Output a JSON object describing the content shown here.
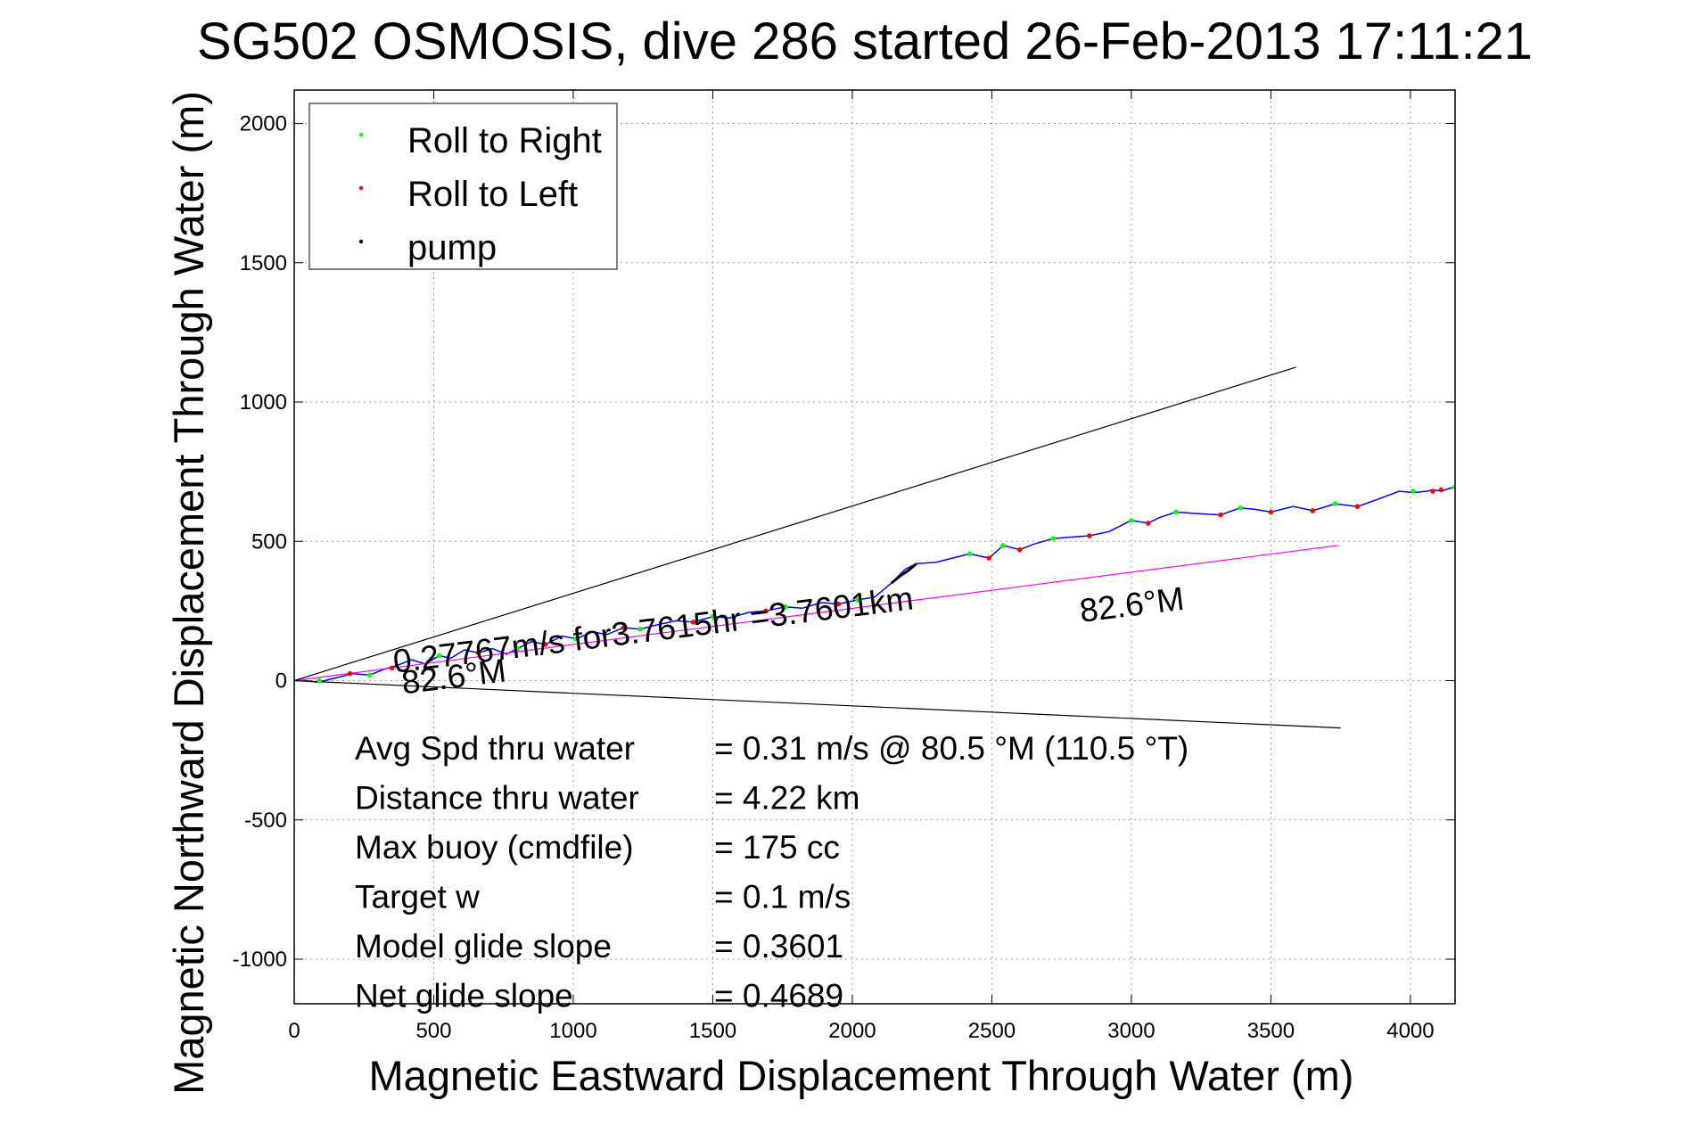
{
  "chart_data": {
    "type": "line",
    "title": "SG502 OSMOSIS, dive 286 started 26-Feb-2013 17:11:21",
    "xlabel": "Magnetic Eastward Displacement Through Water (m)",
    "ylabel": "Magnetic Northward Displacement Through Water (m)",
    "xlim": [
      0,
      4160
    ],
    "ylim": [
      -1160,
      2120
    ],
    "xticks": [
      0,
      500,
      1000,
      1500,
      2000,
      2500,
      3000,
      3500,
      4000
    ],
    "yticks": [
      -1000,
      -500,
      0,
      500,
      1000,
      1500,
      2000
    ],
    "grid": true,
    "legend_position": "top-left",
    "legend": [
      {
        "label": "Roll to Right",
        "color": "#00ff00"
      },
      {
        "label": "Roll to Left",
        "color": "#ff0000"
      },
      {
        "label": "pump",
        "color": "#000000"
      }
    ],
    "series": [
      {
        "role": "track",
        "color": "#0000ff",
        "x": [
          0,
          40,
          80,
          110,
          150,
          210,
          270,
          320,
          370,
          420,
          470,
          520,
          560,
          610,
          660,
          710,
          760,
          800,
          850,
          900,
          960,
          1010,
          1070,
          1120,
          1180,
          1240,
          1300,
          1370,
          1430,
          1500,
          1560,
          1630,
          1690,
          1760,
          1820,
          1890,
          1950,
          2020,
          2080,
          2140,
          2190,
          2230,
          2300,
          2360,
          2420,
          2490,
          2540,
          2600,
          2650,
          2720,
          2780,
          2850,
          2920,
          3000,
          3060,
          3100,
          3160,
          3230,
          3320,
          3390,
          3440,
          3500,
          3580,
          3650,
          3730,
          3810,
          3880,
          3960,
          4010,
          4060,
          4080,
          4110,
          4140,
          4160
        ],
        "y": [
          0,
          0,
          -5,
          0,
          10,
          25,
          20,
          40,
          55,
          75,
          60,
          90,
          80,
          110,
          100,
          115,
          95,
          115,
          140,
          130,
          160,
          150,
          175,
          165,
          190,
          185,
          200,
          215,
          210,
          230,
          225,
          245,
          250,
          265,
          260,
          280,
          275,
          290,
          300,
          350,
          400,
          420,
          425,
          440,
          455,
          440,
          485,
          470,
          490,
          510,
          515,
          520,
          535,
          575,
          565,
          585,
          605,
          600,
          595,
          620,
          615,
          605,
          625,
          610,
          635,
          625,
          650,
          680,
          675,
          680,
          685,
          680,
          690,
          695
        ]
      },
      {
        "role": "heading-line",
        "color": "#ff00ff",
        "x": [
          0,
          3740
        ],
        "y": [
          0,
          485
        ]
      },
      {
        "role": "bound-upper",
        "color": "#000000",
        "x": [
          0,
          3590
        ],
        "y": [
          0,
          1125
        ]
      },
      {
        "role": "bound-lower",
        "color": "#000000",
        "x": [
          0,
          3750
        ],
        "y": [
          0,
          -170
        ]
      },
      {
        "role": "pump",
        "color": "#000000",
        "x": [
          2140,
          2170,
          2200,
          2230
        ],
        "y": [
          350,
          375,
          395,
          420
        ]
      }
    ],
    "markers": {
      "roll_right": {
        "color": "#00ff00",
        "x": [
          90,
          270,
          520,
          800,
          1010,
          1240,
          1500,
          1760,
          2020,
          2420,
          2540,
          2720,
          3000,
          3160,
          3390,
          3730,
          4010,
          4160
        ],
        "y": [
          0,
          20,
          90,
          115,
          150,
          185,
          230,
          265,
          290,
          455,
          485,
          510,
          575,
          605,
          620,
          635,
          680,
          695
        ]
      },
      "roll_left": {
        "color": "#ff0000",
        "x": [
          200,
          350,
          660,
          900,
          1180,
          1430,
          1690,
          1950,
          2490,
          2600,
          2850,
          3060,
          3320,
          3500,
          3650,
          3810,
          4080,
          4110
        ],
        "y": [
          25,
          45,
          100,
          130,
          190,
          210,
          250,
          275,
          440,
          470,
          520,
          565,
          595,
          605,
          610,
          625,
          680,
          685
        ]
      }
    },
    "annotations": [
      {
        "text": "0.27767m/s for3.7615hr =3.7601km",
        "x": 360,
        "y": 28,
        "rotation_deg": -7
      },
      {
        "text": "82.6°M",
        "x": 390,
        "y": -48,
        "rotation_deg": -7
      },
      {
        "text": "82.6°M",
        "x": 2820,
        "y": 210,
        "rotation_deg": -7
      }
    ],
    "stats": [
      {
        "label": "Avg Spd thru water",
        "value": "=  0.31 m/s @  80.5 °M (110.5 °T)"
      },
      {
        "label": "Distance thru water",
        "value": "=  4.22 km"
      },
      {
        "label": "Max buoy (cmdfile)",
        "value": "= 175 cc"
      },
      {
        "label": "Target w",
        "value": "= 0.1 m/s"
      },
      {
        "label": "Model glide slope",
        "value": "= 0.3601"
      },
      {
        "label": "Net glide slope",
        "value": "= 0.4689"
      }
    ]
  }
}
